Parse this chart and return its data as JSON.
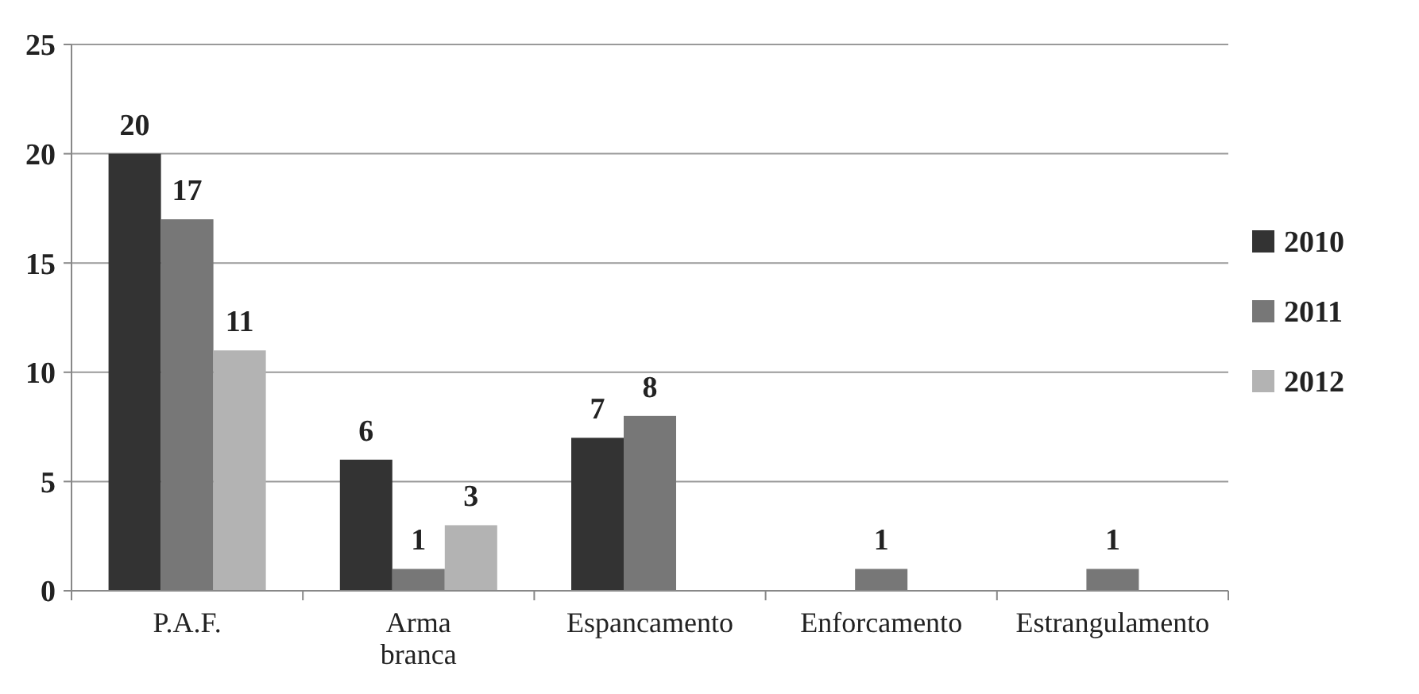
{
  "chart_data": {
    "type": "bar",
    "categories": [
      "P.A.F.",
      "Arma branca",
      "Espancamento",
      "Enforcamento",
      "Estrangulamento"
    ],
    "series": [
      {
        "name": "2010",
        "color": "#333333",
        "values": [
          20,
          6,
          7,
          null,
          null
        ]
      },
      {
        "name": "2011",
        "color": "#777777",
        "values": [
          17,
          1,
          8,
          1,
          1
        ]
      },
      {
        "name": "2012",
        "color": "#b3b3b3",
        "values": [
          11,
          3,
          null,
          null,
          null
        ]
      }
    ],
    "ylim": [
      0,
      25
    ],
    "yticks": [
      0,
      5,
      10,
      15,
      20,
      25
    ],
    "grid": "y",
    "legend": "right",
    "data_labels": true
  }
}
